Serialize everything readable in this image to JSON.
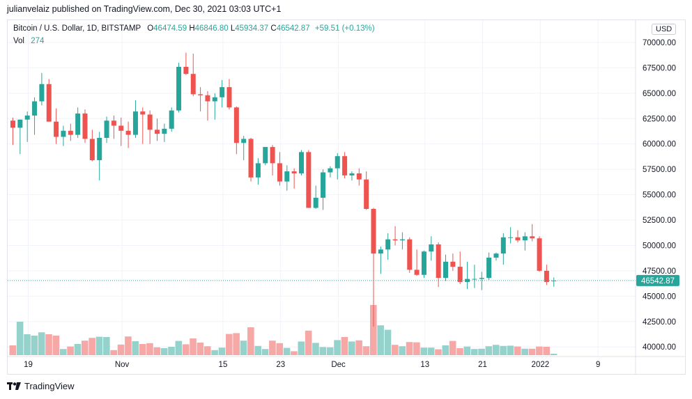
{
  "header": {
    "publisher_line": "julianvelaiz published on TradingView.com, Dec 30, 2021 03:03 UTC+1"
  },
  "legend": {
    "symbol": "Bitcoin / U.S. Dollar, 1D, BITSTAMP",
    "o_label": "O",
    "o_value": "46474.59",
    "h_label": "H",
    "h_value": "46846.80",
    "l_label": "L",
    "l_value": "45934.37",
    "c_label": "C",
    "c_value": "46542.87",
    "change": "+59.51 (+0.13%)",
    "vol_label": "Vol",
    "vol_value": "274"
  },
  "currency_button": "USD",
  "last_price_label": "46542.87",
  "footer": {
    "brand": "TradingView",
    "logo": "tradingview-logo"
  },
  "colors": {
    "up": "#26a69a",
    "down": "#ef5350",
    "up_vol": "#95d2cc",
    "down_vol": "#f6a8a7"
  },
  "chart_data": {
    "type": "candlestick",
    "title": "Bitcoin / U.S. Dollar, 1D, BITSTAMP",
    "x_tick_labels": [
      "19",
      "Nov",
      "15",
      "23",
      "Dec",
      "13",
      "21",
      "2022",
      "9"
    ],
    "x_tick_indices": [
      0,
      13,
      27,
      35,
      43,
      55,
      63,
      71,
      79
    ],
    "y_tick_labels": [
      "40000.00",
      "42500.00",
      "45000.00",
      "47500.00",
      "50000.00",
      "52500.00",
      "55000.00",
      "57500.00",
      "60000.00",
      "62500.00",
      "65000.00",
      "67500.00",
      "70000.00"
    ],
    "ylim": [
      39400,
      71300
    ],
    "last_price": 46542.87,
    "grid": true,
    "candles": [
      {
        "o": 62300,
        "h": 62600,
        "l": 59900,
        "c": 61600
      },
      {
        "o": 61600,
        "h": 62400,
        "l": 59000,
        "c": 62400
      },
      {
        "o": 62400,
        "h": 63200,
        "l": 60200,
        "c": 62800
      },
      {
        "o": 62800,
        "h": 64600,
        "l": 60900,
        "c": 64200
      },
      {
        "o": 64200,
        "h": 67000,
        "l": 63800,
        "c": 65900
      },
      {
        "o": 65900,
        "h": 66400,
        "l": 62200,
        "c": 62200
      },
      {
        "o": 62200,
        "h": 63500,
        "l": 60000,
        "c": 60700
      },
      {
        "o": 60700,
        "h": 61800,
        "l": 59800,
        "c": 61300
      },
      {
        "o": 61300,
        "h": 62000,
        "l": 60300,
        "c": 60900
      },
      {
        "o": 60900,
        "h": 63600,
        "l": 60600,
        "c": 63000
      },
      {
        "o": 63000,
        "h": 63400,
        "l": 60100,
        "c": 60500
      },
      {
        "o": 60500,
        "h": 61400,
        "l": 58300,
        "c": 58400
      },
      {
        "o": 58400,
        "h": 61200,
        "l": 56400,
        "c": 60600
      },
      {
        "o": 60600,
        "h": 62700,
        "l": 60100,
        "c": 62300
      },
      {
        "o": 62300,
        "h": 62800,
        "l": 60500,
        "c": 61800
      },
      {
        "o": 61800,
        "h": 62600,
        "l": 59800,
        "c": 61300
      },
      {
        "o": 61300,
        "h": 62200,
        "l": 59600,
        "c": 60900
      },
      {
        "o": 60900,
        "h": 64300,
        "l": 60600,
        "c": 63200
      },
      {
        "o": 63200,
        "h": 63600,
        "l": 60000,
        "c": 62900
      },
      {
        "o": 62900,
        "h": 63300,
        "l": 60000,
        "c": 61400
      },
      {
        "o": 61400,
        "h": 62500,
        "l": 60300,
        "c": 61000
      },
      {
        "o": 61000,
        "h": 62000,
        "l": 60200,
        "c": 61500
      },
      {
        "o": 61500,
        "h": 63600,
        "l": 61200,
        "c": 63300
      },
      {
        "o": 63300,
        "h": 68000,
        "l": 63100,
        "c": 67600
      },
      {
        "o": 67600,
        "h": 69000,
        "l": 66800,
        "c": 66900
      },
      {
        "o": 66900,
        "h": 68900,
        "l": 64700,
        "c": 64900
      },
      {
        "o": 64900,
        "h": 65600,
        "l": 63200,
        "c": 64800
      },
      {
        "o": 64800,
        "h": 65200,
        "l": 62300,
        "c": 64200
      },
      {
        "o": 64200,
        "h": 65000,
        "l": 62400,
        "c": 64600
      },
      {
        "o": 64600,
        "h": 66300,
        "l": 63600,
        "c": 65600
      },
      {
        "o": 65600,
        "h": 66400,
        "l": 63400,
        "c": 63600
      },
      {
        "o": 63600,
        "h": 63700,
        "l": 59000,
        "c": 60100
      },
      {
        "o": 60100,
        "h": 60800,
        "l": 58400,
        "c": 60500
      },
      {
        "o": 60500,
        "h": 60600,
        "l": 56300,
        "c": 56700
      },
      {
        "o": 56700,
        "h": 58600,
        "l": 56000,
        "c": 58100
      },
      {
        "o": 58100,
        "h": 59700,
        "l": 57900,
        "c": 59700
      },
      {
        "o": 59700,
        "h": 59900,
        "l": 56900,
        "c": 58100
      },
      {
        "o": 58100,
        "h": 59200,
        "l": 55900,
        "c": 56300
      },
      {
        "o": 56300,
        "h": 57900,
        "l": 55400,
        "c": 57300
      },
      {
        "o": 57300,
        "h": 57600,
        "l": 55600,
        "c": 57100
      },
      {
        "o": 57100,
        "h": 59400,
        "l": 56900,
        "c": 59200
      },
      {
        "o": 59200,
        "h": 59400,
        "l": 53700,
        "c": 53700
      },
      {
        "o": 53700,
        "h": 55900,
        "l": 53600,
        "c": 54700
      },
      {
        "o": 54700,
        "h": 57500,
        "l": 53500,
        "c": 57200
      },
      {
        "o": 57200,
        "h": 57800,
        "l": 56700,
        "c": 57600
      },
      {
        "o": 57600,
        "h": 59100,
        "l": 56500,
        "c": 58800
      },
      {
        "o": 58800,
        "h": 59200,
        "l": 56600,
        "c": 56900
      },
      {
        "o": 56900,
        "h": 57300,
        "l": 56400,
        "c": 57100
      },
      {
        "o": 57100,
        "h": 57600,
        "l": 55900,
        "c": 56500
      },
      {
        "o": 56500,
        "h": 57300,
        "l": 53500,
        "c": 53600
      },
      {
        "o": 53600,
        "h": 53700,
        "l": 42000,
        "c": 49200
      },
      {
        "o": 49200,
        "h": 49900,
        "l": 47200,
        "c": 49600
      },
      {
        "o": 49600,
        "h": 51200,
        "l": 48600,
        "c": 50600
      },
      {
        "o": 50600,
        "h": 51900,
        "l": 50000,
        "c": 50500
      },
      {
        "o": 50500,
        "h": 51300,
        "l": 49600,
        "c": 50600
      },
      {
        "o": 50600,
        "h": 50800,
        "l": 47300,
        "c": 47600
      },
      {
        "o": 47600,
        "h": 49600,
        "l": 47000,
        "c": 47100
      },
      {
        "o": 47100,
        "h": 49500,
        "l": 46800,
        "c": 49400
      },
      {
        "o": 49400,
        "h": 50900,
        "l": 48500,
        "c": 50100
      },
      {
        "o": 50100,
        "h": 50300,
        "l": 45900,
        "c": 46800
      },
      {
        "o": 46800,
        "h": 49100,
        "l": 46500,
        "c": 48400
      },
      {
        "o": 48400,
        "h": 49200,
        "l": 47500,
        "c": 47900
      },
      {
        "o": 47900,
        "h": 49400,
        "l": 46200,
        "c": 46400
      },
      {
        "o": 46400,
        "h": 48400,
        "l": 45700,
        "c": 46700
      },
      {
        "o": 46700,
        "h": 48100,
        "l": 45800,
        "c": 46700
      },
      {
        "o": 46700,
        "h": 47400,
        "l": 45600,
        "c": 46800
      },
      {
        "o": 46800,
        "h": 49300,
        "l": 46600,
        "c": 48800
      },
      {
        "o": 48800,
        "h": 49300,
        "l": 48500,
        "c": 49200
      },
      {
        "o": 49200,
        "h": 51200,
        "l": 48100,
        "c": 50800
      },
      {
        "o": 50800,
        "h": 51800,
        "l": 50200,
        "c": 50800
      },
      {
        "o": 50800,
        "h": 51500,
        "l": 50300,
        "c": 50500
      },
      {
        "o": 50500,
        "h": 51300,
        "l": 49500,
        "c": 50900
      },
      {
        "o": 50900,
        "h": 52100,
        "l": 50400,
        "c": 50700
      },
      {
        "o": 50700,
        "h": 50900,
        "l": 47400,
        "c": 47500
      },
      {
        "o": 47500,
        "h": 48100,
        "l": 46100,
        "c": 46400
      },
      {
        "o": 46474.59,
        "h": 46846.8,
        "l": 45934.37,
        "c": 46542.87
      }
    ],
    "volume": [
      3.5,
      12.0,
      7.5,
      7.0,
      8.2,
      7.5,
      7.0,
      2.2,
      3.1,
      4.0,
      5.2,
      6.2,
      6.6,
      6.5,
      1.8,
      3.8,
      6.7,
      5.0,
      4.0,
      4.3,
      2.8,
      2.5,
      3.0,
      5.1,
      3.9,
      6.0,
      4.5,
      3.2,
      1.8,
      2.7,
      7.6,
      7.9,
      5.2,
      10.0,
      3.3,
      2.2,
      5.2,
      4.3,
      2.6,
      1.4,
      4.9,
      8.8,
      4.4,
      2.9,
      2.8,
      5.4,
      6.5,
      4.9,
      5.3,
      3.2,
      18.0,
      10.7,
      9.1,
      3.7,
      3.2,
      4.7,
      4.6,
      2.7,
      2.7,
      2.1,
      3.5,
      5.1,
      2.5,
      3.1,
      2.2,
      2.3,
      3.2,
      3.7,
      3.3,
      3.4,
      3.1,
      2.3,
      2.3,
      3.1,
      3.0,
      0.5
    ],
    "volume_scale_max": 18.0
  }
}
